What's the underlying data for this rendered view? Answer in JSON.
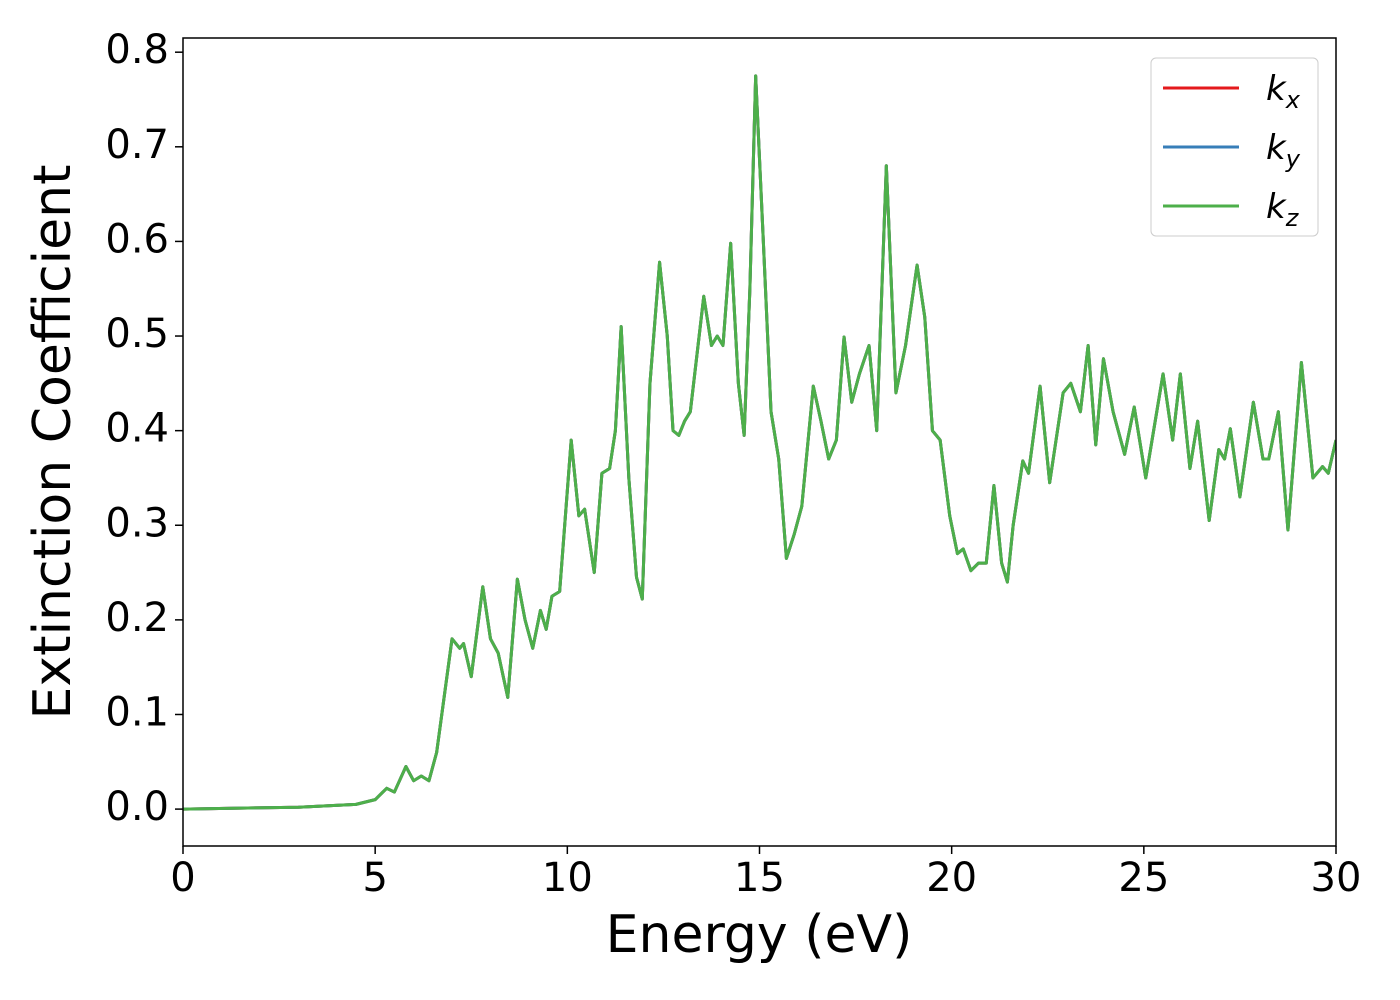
{
  "chart_data": {
    "type": "line",
    "x_label": "Energy (eV)",
    "y_label": "Extinction Coefficient",
    "x": [
      0,
      3,
      4.5,
      5.0,
      5.3,
      5.5,
      5.8,
      6.0,
      6.2,
      6.4,
      6.6,
      6.8,
      7.0,
      7.2,
      7.3,
      7.5,
      7.8,
      8.0,
      8.2,
      8.45,
      8.7,
      8.9,
      9.1,
      9.3,
      9.45,
      9.6,
      9.8,
      10.1,
      10.3,
      10.45,
      10.7,
      10.9,
      11.1,
      11.25,
      11.4,
      11.6,
      11.8,
      11.95,
      12.15,
      12.4,
      12.6,
      12.75,
      12.9,
      13.05,
      13.2,
      13.55,
      13.75,
      13.9,
      14.05,
      14.25,
      14.45,
      14.6,
      14.75,
      14.9,
      15.1,
      15.3,
      15.5,
      15.7,
      15.9,
      16.1,
      16.4,
      16.6,
      16.8,
      17.0,
      17.2,
      17.4,
      17.6,
      17.85,
      18.05,
      18.3,
      18.55,
      18.8,
      19.1,
      19.3,
      19.5,
      19.7,
      19.95,
      20.15,
      20.3,
      20.5,
      20.7,
      20.9,
      21.1,
      21.3,
      21.45,
      21.6,
      21.85,
      22.0,
      22.3,
      22.55,
      22.9,
      23.1,
      23.35,
      23.55,
      23.75,
      23.95,
      24.2,
      24.5,
      24.75,
      25.05,
      25.5,
      25.75,
      25.95,
      26.2,
      26.4,
      26.7,
      26.95,
      27.1,
      27.25,
      27.5,
      27.85,
      28.1,
      28.25,
      28.5,
      28.75,
      29.1,
      29.4,
      29.65,
      29.8,
      30.0
    ],
    "series": [
      {
        "name": "k_x",
        "color": "#e41a1c",
        "values": [
          0,
          0.002,
          0.005,
          0.01,
          0.022,
          0.018,
          0.045,
          0.03,
          0.035,
          0.03,
          0.06,
          0.12,
          0.18,
          0.17,
          0.175,
          0.14,
          0.235,
          0.18,
          0.165,
          0.118,
          0.243,
          0.2,
          0.17,
          0.21,
          0.19,
          0.225,
          0.23,
          0.39,
          0.31,
          0.317,
          0.25,
          0.355,
          0.36,
          0.4,
          0.51,
          0.35,
          0.245,
          0.222,
          0.45,
          0.578,
          0.5,
          0.4,
          0.395,
          0.41,
          0.42,
          0.542,
          0.49,
          0.5,
          0.49,
          0.598,
          0.45,
          0.395,
          0.55,
          0.775,
          0.6,
          0.42,
          0.37,
          0.265,
          0.29,
          0.32,
          0.447,
          0.41,
          0.37,
          0.39,
          0.499,
          0.43,
          0.46,
          0.49,
          0.4,
          0.68,
          0.44,
          0.49,
          0.575,
          0.52,
          0.4,
          0.39,
          0.31,
          0.27,
          0.275,
          0.252,
          0.26,
          0.26,
          0.342,
          0.26,
          0.24,
          0.3,
          0.368,
          0.355,
          0.447,
          0.345,
          0.44,
          0.45,
          0.42,
          0.49,
          0.385,
          0.476,
          0.42,
          0.375,
          0.425,
          0.35,
          0.46,
          0.39,
          0.46,
          0.36,
          0.41,
          0.305,
          0.38,
          0.37,
          0.402,
          0.33,
          0.43,
          0.37,
          0.37,
          0.42,
          0.295,
          0.472,
          0.35,
          0.362,
          0.355,
          0.39
        ]
      },
      {
        "name": "k_y",
        "color": "#377eb8",
        "values": [
          0,
          0.002,
          0.005,
          0.01,
          0.022,
          0.018,
          0.045,
          0.03,
          0.035,
          0.03,
          0.06,
          0.12,
          0.18,
          0.17,
          0.175,
          0.14,
          0.235,
          0.18,
          0.165,
          0.118,
          0.243,
          0.2,
          0.17,
          0.21,
          0.19,
          0.225,
          0.23,
          0.39,
          0.31,
          0.317,
          0.25,
          0.355,
          0.36,
          0.4,
          0.51,
          0.35,
          0.245,
          0.222,
          0.45,
          0.578,
          0.5,
          0.4,
          0.395,
          0.41,
          0.42,
          0.542,
          0.49,
          0.5,
          0.49,
          0.598,
          0.45,
          0.395,
          0.55,
          0.775,
          0.6,
          0.42,
          0.37,
          0.265,
          0.29,
          0.32,
          0.447,
          0.41,
          0.37,
          0.39,
          0.499,
          0.43,
          0.46,
          0.49,
          0.4,
          0.68,
          0.44,
          0.49,
          0.575,
          0.52,
          0.4,
          0.39,
          0.31,
          0.27,
          0.275,
          0.252,
          0.26,
          0.26,
          0.342,
          0.26,
          0.24,
          0.3,
          0.368,
          0.355,
          0.447,
          0.345,
          0.44,
          0.45,
          0.42,
          0.49,
          0.385,
          0.476,
          0.42,
          0.375,
          0.425,
          0.35,
          0.46,
          0.39,
          0.46,
          0.36,
          0.41,
          0.305,
          0.38,
          0.37,
          0.402,
          0.33,
          0.43,
          0.37,
          0.37,
          0.42,
          0.295,
          0.472,
          0.35,
          0.362,
          0.355,
          0.39
        ]
      },
      {
        "name": "k_z",
        "color": "#4daf4a",
        "values": [
          0,
          0.002,
          0.005,
          0.01,
          0.022,
          0.018,
          0.045,
          0.03,
          0.035,
          0.03,
          0.06,
          0.12,
          0.18,
          0.17,
          0.175,
          0.14,
          0.235,
          0.18,
          0.165,
          0.118,
          0.243,
          0.2,
          0.17,
          0.21,
          0.19,
          0.225,
          0.23,
          0.39,
          0.31,
          0.317,
          0.25,
          0.355,
          0.36,
          0.4,
          0.51,
          0.35,
          0.245,
          0.222,
          0.45,
          0.578,
          0.5,
          0.4,
          0.395,
          0.41,
          0.42,
          0.542,
          0.49,
          0.5,
          0.49,
          0.598,
          0.45,
          0.395,
          0.55,
          0.775,
          0.6,
          0.42,
          0.37,
          0.265,
          0.29,
          0.32,
          0.447,
          0.41,
          0.37,
          0.39,
          0.499,
          0.43,
          0.46,
          0.49,
          0.4,
          0.68,
          0.44,
          0.49,
          0.575,
          0.52,
          0.4,
          0.39,
          0.31,
          0.27,
          0.275,
          0.252,
          0.26,
          0.26,
          0.342,
          0.26,
          0.24,
          0.3,
          0.368,
          0.355,
          0.447,
          0.345,
          0.44,
          0.45,
          0.42,
          0.49,
          0.385,
          0.476,
          0.42,
          0.375,
          0.425,
          0.35,
          0.46,
          0.39,
          0.46,
          0.36,
          0.41,
          0.305,
          0.38,
          0.37,
          0.402,
          0.33,
          0.43,
          0.37,
          0.37,
          0.42,
          0.295,
          0.472,
          0.35,
          0.362,
          0.355,
          0.39
        ]
      }
    ],
    "xlim": [
      0,
      30
    ],
    "xticks": [
      0,
      5,
      10,
      15,
      20,
      25,
      30
    ],
    "ylim": [
      -0.039,
      0.815
    ],
    "yticks": [
      {
        "value": 0,
        "label": "0.0"
      },
      0.1,
      0.2,
      0.3,
      0.4,
      0.5,
      0.6,
      0.7,
      0.8
    ],
    "grid": false,
    "legend": "upper right"
  }
}
